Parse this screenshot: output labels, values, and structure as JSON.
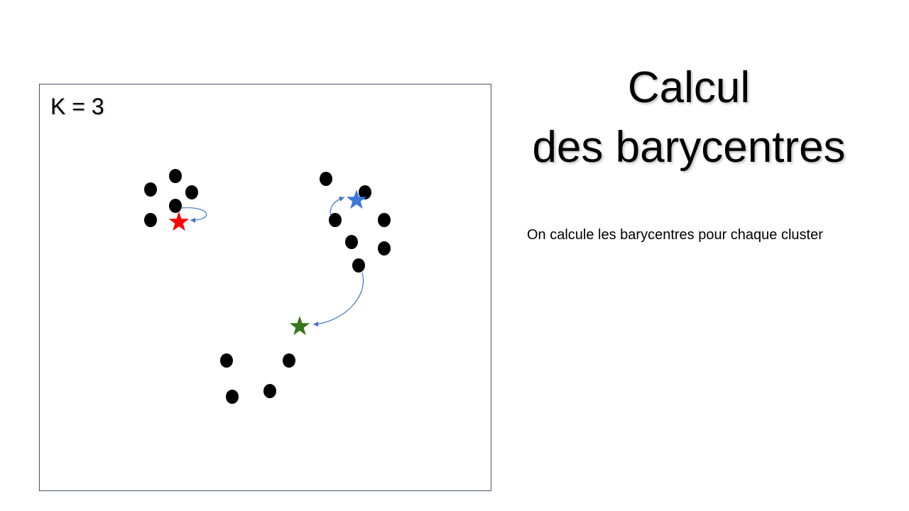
{
  "slide": {
    "k_label": "K = 3",
    "title_line1": "Calcul",
    "title_line2": "des barycentres",
    "note": "On calcule les barycentres pour chaque cluster"
  },
  "colors": {
    "point": "#000000",
    "star_red": "#ff0000",
    "star_blue": "#3c78d8",
    "star_green": "#38761d",
    "arrow": "#4472c4",
    "frame": "#44546a"
  }
}
